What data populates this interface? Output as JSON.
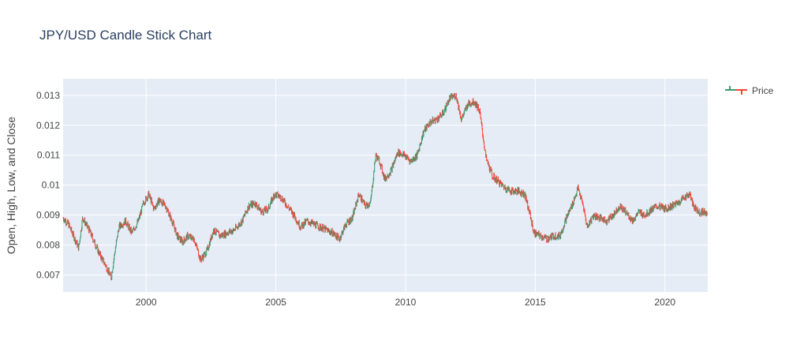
{
  "chart_data": {
    "type": "candlestick",
    "title": "JPY/USD Candle Stick Chart",
    "xlabel": "",
    "ylabel": "Open, High, Low, and Close",
    "xlim": [
      1996.8,
      2021.65
    ],
    "ylim": [
      0.00643,
      0.01355
    ],
    "x_ticks": [
      2000,
      2005,
      2010,
      2015,
      2020
    ],
    "x_tick_labels": [
      "2000",
      "2005",
      "2010",
      "2015",
      "2020"
    ],
    "y_ticks": [
      0.007,
      0.008,
      0.009,
      0.01,
      0.011,
      0.012,
      0.013
    ],
    "y_tick_labels": [
      "0.007",
      "0.008",
      "0.009",
      "0.01",
      "0.011",
      "0.012",
      "0.013"
    ],
    "grid": true,
    "legend": {
      "position": "top-right",
      "entries": [
        "Price"
      ]
    },
    "colors": {
      "increasing": "#3d9970",
      "decreasing": "#ff4136",
      "plot_bg": "#e5ecf6",
      "grid": "#ffffff",
      "text": "#444444",
      "title": "#2a3f5f"
    },
    "series": [
      {
        "name": "Price",
        "close_path": [
          [
            1996.8,
            0.0089
          ],
          [
            1997.0,
            0.0087
          ],
          [
            1997.2,
            0.0083
          ],
          [
            1997.4,
            0.0079
          ],
          [
            1997.55,
            0.0089
          ],
          [
            1997.8,
            0.0085
          ],
          [
            1998.0,
            0.0081
          ],
          [
            1998.2,
            0.0077
          ],
          [
            1998.45,
            0.0073
          ],
          [
            1998.65,
            0.0069
          ],
          [
            1998.8,
            0.0078
          ],
          [
            1998.95,
            0.0086
          ],
          [
            1999.2,
            0.0088
          ],
          [
            1999.45,
            0.0084
          ],
          [
            1999.7,
            0.0088
          ],
          [
            1999.9,
            0.0094
          ],
          [
            2000.1,
            0.0097
          ],
          [
            2000.3,
            0.0092
          ],
          [
            2000.5,
            0.0095
          ],
          [
            2000.75,
            0.0093
          ],
          [
            2001.0,
            0.0088
          ],
          [
            2001.2,
            0.0083
          ],
          [
            2001.4,
            0.0081
          ],
          [
            2001.6,
            0.0083
          ],
          [
            2001.85,
            0.0082
          ],
          [
            2002.1,
            0.0075
          ],
          [
            2002.35,
            0.0078
          ],
          [
            2002.6,
            0.0085
          ],
          [
            2002.85,
            0.0083
          ],
          [
            2003.1,
            0.0084
          ],
          [
            2003.4,
            0.0085
          ],
          [
            2003.7,
            0.0088
          ],
          [
            2003.95,
            0.0093
          ],
          [
            2004.2,
            0.0094
          ],
          [
            2004.45,
            0.0091
          ],
          [
            2004.7,
            0.0092
          ],
          [
            2004.95,
            0.0097
          ],
          [
            2005.2,
            0.0096
          ],
          [
            2005.45,
            0.0093
          ],
          [
            2005.7,
            0.009
          ],
          [
            2005.95,
            0.0086
          ],
          [
            2006.2,
            0.0088
          ],
          [
            2006.45,
            0.0087
          ],
          [
            2006.7,
            0.0086
          ],
          [
            2006.95,
            0.0085
          ],
          [
            2007.2,
            0.0084
          ],
          [
            2007.45,
            0.0082
          ],
          [
            2007.7,
            0.0087
          ],
          [
            2007.95,
            0.0089
          ],
          [
            2008.2,
            0.0097
          ],
          [
            2008.45,
            0.0093
          ],
          [
            2008.65,
            0.0094
          ],
          [
            2008.85,
            0.011
          ],
          [
            2009.0,
            0.0108
          ],
          [
            2009.2,
            0.0102
          ],
          [
            2009.45,
            0.0105
          ],
          [
            2009.7,
            0.0111
          ],
          [
            2009.95,
            0.011
          ],
          [
            2010.2,
            0.0108
          ],
          [
            2010.45,
            0.011
          ],
          [
            2010.7,
            0.0118
          ],
          [
            2010.95,
            0.0121
          ],
          [
            2011.2,
            0.0122
          ],
          [
            2011.45,
            0.0124
          ],
          [
            2011.7,
            0.0129
          ],
          [
            2011.95,
            0.013
          ],
          [
            2012.15,
            0.0122
          ],
          [
            2012.4,
            0.0127
          ],
          [
            2012.65,
            0.0128
          ],
          [
            2012.85,
            0.0125
          ],
          [
            2013.1,
            0.0109
          ],
          [
            2013.35,
            0.0103
          ],
          [
            2013.6,
            0.0101
          ],
          [
            2013.85,
            0.0099
          ],
          [
            2014.1,
            0.0098
          ],
          [
            2014.35,
            0.0098
          ],
          [
            2014.6,
            0.0097
          ],
          [
            2014.8,
            0.009
          ],
          [
            2014.95,
            0.0084
          ],
          [
            2015.2,
            0.0083
          ],
          [
            2015.45,
            0.0082
          ],
          [
            2015.7,
            0.0083
          ],
          [
            2015.95,
            0.0083
          ],
          [
            2016.2,
            0.0089
          ],
          [
            2016.45,
            0.0094
          ],
          [
            2016.65,
            0.0099
          ],
          [
            2016.85,
            0.0093
          ],
          [
            2017.0,
            0.0086
          ],
          [
            2017.25,
            0.009
          ],
          [
            2017.5,
            0.0089
          ],
          [
            2017.75,
            0.0088
          ],
          [
            2018.0,
            0.009
          ],
          [
            2018.25,
            0.0093
          ],
          [
            2018.5,
            0.0091
          ],
          [
            2018.75,
            0.0088
          ],
          [
            2019.0,
            0.0091
          ],
          [
            2019.25,
            0.009
          ],
          [
            2019.5,
            0.0092
          ],
          [
            2019.75,
            0.0093
          ],
          [
            2020.0,
            0.0092
          ],
          [
            2020.25,
            0.0093
          ],
          [
            2020.5,
            0.0094
          ],
          [
            2020.75,
            0.0096
          ],
          [
            2020.95,
            0.0097
          ],
          [
            2021.1,
            0.0093
          ],
          [
            2021.3,
            0.0091
          ],
          [
            2021.5,
            0.0091
          ],
          [
            2021.65,
            0.0091
          ]
        ]
      }
    ]
  }
}
